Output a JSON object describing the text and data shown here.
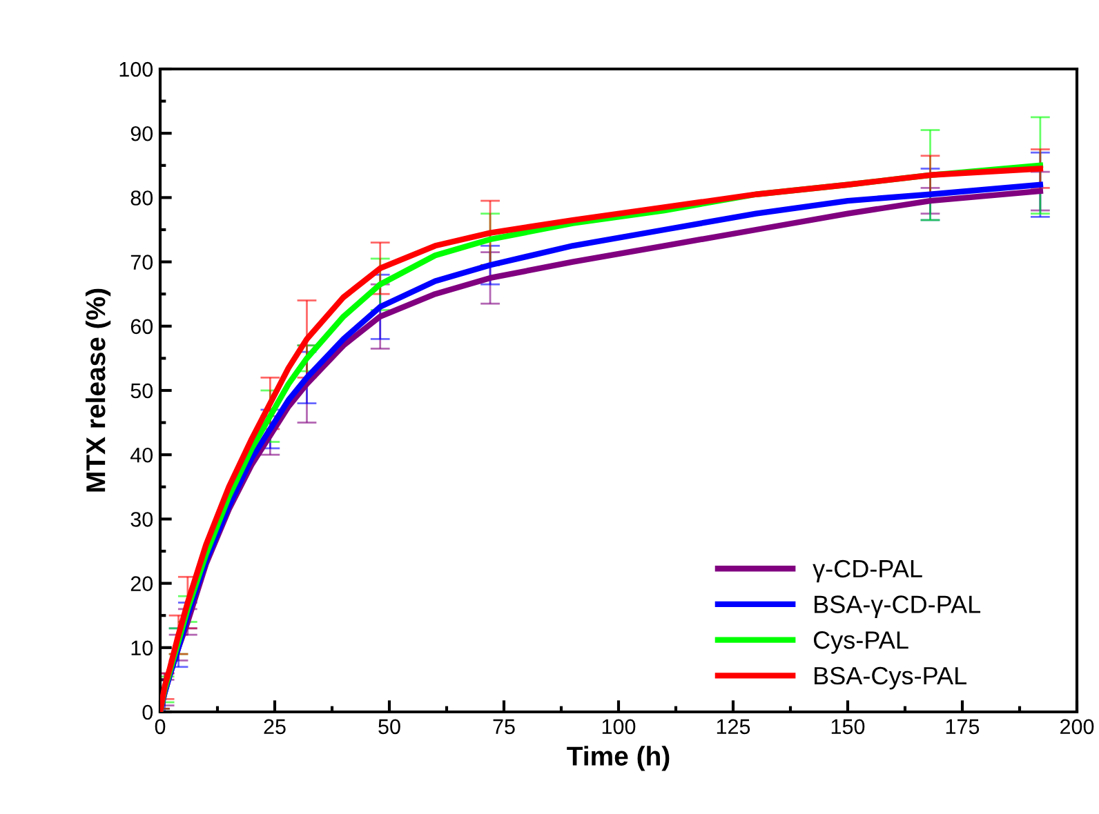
{
  "chart_data": {
    "type": "line",
    "xlabel": "Time (h)",
    "ylabel": "MTX release (%)",
    "x": [
      0,
      1,
      2,
      4,
      6,
      10,
      15,
      20,
      24,
      28,
      32,
      40,
      48,
      60,
      72,
      90,
      110,
      130,
      150,
      168,
      192
    ],
    "xlim": [
      0,
      200
    ],
    "xticks": [
      0,
      25,
      50,
      75,
      100,
      125,
      150,
      175,
      200
    ],
    "ylim": [
      0,
      100
    ],
    "yticks": [
      0,
      10,
      20,
      30,
      40,
      50,
      60,
      70,
      80,
      90,
      100
    ],
    "grid": false,
    "legend": "bottom right",
    "marker": "none",
    "line_style": "solid",
    "series": [
      {
        "name": "γ-CD-PAL",
        "color": "#800080",
        "values": [
          0,
          3,
          5.5,
          10,
          14,
          23,
          31.5,
          38.5,
          43,
          47.5,
          51,
          57,
          61.5,
          65,
          67.5,
          70,
          72.5,
          75,
          77.5,
          79.5,
          81
        ],
        "errors": [
          0.5,
          2,
          null,
          2,
          2,
          null,
          null,
          null,
          3,
          null,
          6,
          null,
          5,
          null,
          4,
          null,
          null,
          null,
          null,
          2,
          3
        ]
      },
      {
        "name": "BSA-γ-CD-PAL",
        "color": "#0000ff",
        "values": [
          0,
          3,
          5.5,
          10,
          15,
          23.5,
          32,
          39.5,
          44,
          48.5,
          52,
          58,
          63,
          67,
          69.5,
          72.5,
          75,
          77.5,
          79.5,
          80.5,
          82
        ],
        "errors": [
          0.5,
          3,
          null,
          3,
          2,
          null,
          null,
          null,
          3,
          null,
          4,
          null,
          5,
          null,
          3,
          null,
          null,
          null,
          null,
          4,
          5
        ]
      },
      {
        "name": "Cys-PAL",
        "color": "#00ff00",
        "values": [
          0,
          3.5,
          6,
          11,
          16,
          24.5,
          33.5,
          41,
          46,
          51,
          55,
          61.5,
          66.5,
          71,
          73.5,
          76,
          78,
          80.5,
          82,
          83.5,
          85
        ],
        "errors": [
          0.5,
          2,
          null,
          2,
          2,
          null,
          null,
          null,
          4,
          null,
          2,
          null,
          4,
          null,
          4,
          null,
          null,
          null,
          null,
          7,
          7.5
        ]
      },
      {
        "name": "BSA-Cys-PAL",
        "color": "#ff0000",
        "values": [
          0,
          4,
          6.5,
          12,
          17,
          26,
          35,
          42.5,
          48,
          53.5,
          58,
          64.5,
          69,
          72.5,
          74.5,
          76.5,
          78.5,
          80.5,
          82,
          83.5,
          84.5
        ],
        "errors": [
          0.5,
          2,
          null,
          3,
          4,
          null,
          null,
          null,
          4,
          null,
          6,
          null,
          4,
          null,
          5,
          null,
          null,
          null,
          null,
          3,
          3
        ]
      }
    ]
  }
}
